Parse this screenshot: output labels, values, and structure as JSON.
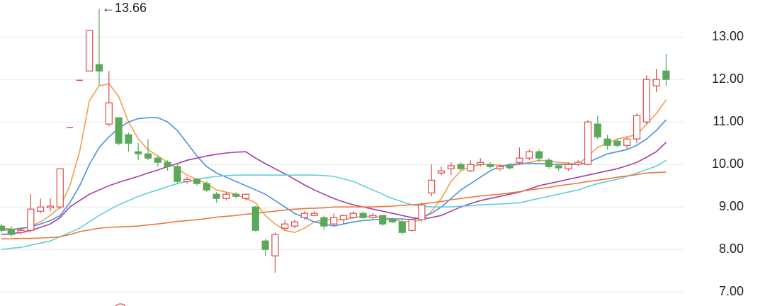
{
  "chart_data": {
    "type": "candlestick",
    "annotation": "←13.66",
    "up_color": "#e04848",
    "down_color": "#5aa95a",
    "open": [
      8.55,
      8.48,
      8.4,
      8.45,
      8.9,
      8.98,
      9.0,
      10.87,
      11.98,
      12.2,
      12.35,
      10.95,
      11.1,
      10.7,
      10.3,
      10.25,
      10.15,
      10.05,
      9.95,
      9.6,
      9.65,
      9.55,
      9.3,
      9.2,
      9.3,
      9.2,
      9.0,
      8.2,
      7.85,
      8.5,
      8.55,
      8.75,
      8.8,
      8.75,
      8.6,
      8.7,
      8.75,
      8.85,
      8.75,
      8.8,
      8.7,
      8.65,
      8.45,
      8.7,
      9.33,
      9.8,
      9.9,
      10.0,
      9.85,
      10.0,
      10.0,
      9.9,
      9.97,
      10.05,
      10.15,
      10.3,
      10.1,
      9.97,
      9.9,
      10.0,
      10.0,
      10.95,
      10.6,
      10.55,
      10.45,
      10.6,
      11.0,
      11.85,
      12.2
    ],
    "high": [
      8.6,
      8.55,
      8.5,
      9.3,
      9.2,
      9.2,
      9.9,
      10.87,
      11.98,
      13.15,
      13.66,
      12.2,
      11.1,
      10.75,
      10.5,
      10.6,
      10.2,
      10.1,
      10.0,
      9.7,
      9.68,
      9.6,
      9.35,
      9.35,
      9.35,
      9.3,
      9.02,
      8.25,
      8.4,
      8.7,
      8.7,
      8.9,
      8.9,
      8.8,
      8.85,
      8.82,
      8.9,
      8.9,
      8.85,
      8.82,
      8.75,
      8.7,
      8.75,
      9.1,
      10.0,
      9.95,
      10.05,
      10.05,
      10.1,
      10.15,
      10.05,
      10.0,
      10.02,
      10.4,
      10.35,
      10.35,
      10.15,
      10.02,
      10.05,
      10.1,
      11.05,
      11.15,
      10.7,
      10.6,
      10.65,
      11.2,
      12.1,
      12.25,
      12.6
    ],
    "low": [
      8.4,
      8.3,
      8.35,
      8.4,
      8.85,
      8.9,
      8.95,
      10.87,
      11.98,
      12.2,
      11.85,
      10.9,
      10.45,
      10.3,
      10.1,
      10.1,
      9.95,
      9.85,
      9.55,
      9.55,
      9.5,
      9.35,
      9.1,
      9.15,
      9.2,
      9.15,
      8.42,
      7.85,
      7.45,
      8.45,
      8.5,
      8.7,
      8.78,
      8.45,
      8.55,
      8.6,
      8.72,
      8.72,
      8.72,
      8.55,
      8.62,
      8.35,
      8.42,
      8.65,
      9.25,
      9.75,
      9.75,
      9.85,
      9.82,
      9.95,
      9.9,
      9.85,
      9.88,
      10.0,
      10.1,
      10.05,
      9.9,
      9.85,
      9.85,
      9.97,
      9.98,
      10.6,
      10.35,
      10.4,
      10.35,
      10.5,
      10.95,
      11.7,
      11.85
    ],
    "close": [
      8.45,
      8.35,
      8.45,
      8.95,
      9.0,
      9.02,
      9.9,
      10.87,
      11.98,
      13.15,
      12.2,
      11.45,
      10.5,
      10.5,
      10.25,
      10.15,
      10.05,
      9.95,
      9.6,
      9.65,
      9.55,
      9.4,
      9.2,
      9.3,
      9.25,
      9.3,
      8.45,
      8.0,
      8.35,
      8.6,
      8.65,
      8.85,
      8.85,
      8.55,
      8.75,
      8.8,
      8.85,
      8.75,
      8.8,
      8.6,
      8.65,
      8.4,
      8.7,
      9.05,
      9.63,
      9.85,
      9.97,
      9.9,
      10.0,
      10.05,
      9.95,
      9.95,
      9.92,
      10.15,
      10.3,
      10.15,
      9.95,
      9.92,
      10.0,
      10.05,
      11.0,
      10.65,
      10.45,
      10.45,
      10.6,
      11.15,
      12.0,
      12.0,
      12.0
    ],
    "series": [
      {
        "color": "#f0a04b",
        "values": [
          8.5,
          8.48,
          8.47,
          8.55,
          8.65,
          8.8,
          9.0,
          9.5,
          10.3,
          11.5,
          11.85,
          11.9,
          11.6,
          11.0,
          10.6,
          10.35,
          10.2,
          10.05,
          9.9,
          9.75,
          9.65,
          9.55,
          9.4,
          9.35,
          9.3,
          9.2,
          9.1,
          8.8,
          8.6,
          8.45,
          8.4,
          8.5,
          8.65,
          8.7,
          8.7,
          8.7,
          8.75,
          8.78,
          8.78,
          8.75,
          8.72,
          8.65,
          8.65,
          8.7,
          8.9,
          9.2,
          9.6,
          9.85,
          9.95,
          10.0,
          10.0,
          9.98,
          9.97,
          10.0,
          10.05,
          10.1,
          10.08,
          10.05,
          10.03,
          10.0,
          10.2,
          10.4,
          10.5,
          10.6,
          10.65,
          10.7,
          10.95,
          11.2,
          11.52
        ]
      },
      {
        "color": "#4a90e2",
        "values": [
          8.45,
          8.47,
          8.5,
          8.53,
          8.6,
          8.68,
          8.8,
          9.1,
          9.5,
          10.0,
          10.4,
          10.65,
          10.85,
          11.0,
          11.08,
          11.1,
          11.1,
          11.0,
          10.8,
          10.5,
          10.2,
          9.95,
          9.8,
          9.7,
          9.6,
          9.5,
          9.4,
          9.3,
          9.15,
          9.0,
          8.85,
          8.75,
          8.65,
          8.6,
          8.55,
          8.6,
          8.65,
          8.68,
          8.7,
          8.7,
          8.72,
          8.72,
          8.7,
          8.75,
          8.85,
          9.0,
          9.2,
          9.4,
          9.55,
          9.7,
          9.85,
          9.95,
          10.0,
          10.02,
          10.03,
          10.02,
          10.01,
          10.0,
          10.0,
          10.0,
          10.05,
          10.15,
          10.25,
          10.3,
          10.35,
          10.45,
          10.6,
          10.8,
          11.05
        ]
      },
      {
        "color": "#a63ea6",
        "values": [
          8.35,
          8.37,
          8.4,
          8.45,
          8.52,
          8.6,
          8.75,
          9.0,
          9.15,
          9.3,
          9.4,
          9.5,
          9.58,
          9.65,
          9.72,
          9.8,
          9.87,
          9.95,
          10.02,
          10.1,
          10.15,
          10.2,
          10.24,
          10.27,
          10.29,
          10.3,
          10.15,
          10.02,
          9.9,
          9.78,
          9.65,
          9.52,
          9.4,
          9.3,
          9.2,
          9.12,
          9.05,
          9.0,
          8.95,
          8.9,
          8.85,
          8.8,
          8.75,
          8.72,
          8.75,
          8.8,
          8.9,
          9.0,
          9.08,
          9.15,
          9.2,
          9.25,
          9.3,
          9.35,
          9.42,
          9.5,
          9.55,
          9.6,
          9.65,
          9.7,
          9.75,
          9.8,
          9.85,
          9.9,
          9.97,
          10.05,
          10.17,
          10.3,
          10.52
        ]
      },
      {
        "color": "#5fcfda",
        "values": [
          8.0,
          8.03,
          8.05,
          8.1,
          8.15,
          8.2,
          8.3,
          8.4,
          8.5,
          8.65,
          8.8,
          8.93,
          9.05,
          9.15,
          9.25,
          9.33,
          9.4,
          9.48,
          9.55,
          9.6,
          9.65,
          9.69,
          9.72,
          9.74,
          9.75,
          9.75,
          9.75,
          9.75,
          9.75,
          9.75,
          9.75,
          9.75,
          9.75,
          9.74,
          9.72,
          9.66,
          9.6,
          9.5,
          9.4,
          9.3,
          9.2,
          9.12,
          9.05,
          9.02,
          9.0,
          9.0,
          9.0,
          9.02,
          9.03,
          9.05,
          9.06,
          9.07,
          9.08,
          9.1,
          9.15,
          9.2,
          9.25,
          9.3,
          9.35,
          9.4,
          9.48,
          9.55,
          9.6,
          9.65,
          9.72,
          9.8,
          9.88,
          9.96,
          10.1
        ]
      },
      {
        "color": "#ea7a3c",
        "values": [
          8.25,
          8.25,
          8.26,
          8.26,
          8.27,
          8.28,
          8.3,
          8.35,
          8.42,
          8.46,
          8.5,
          8.52,
          8.53,
          8.54,
          8.55,
          8.58,
          8.6,
          8.63,
          8.66,
          8.68,
          8.7,
          8.73,
          8.76,
          8.78,
          8.8,
          8.83,
          8.85,
          8.88,
          8.9,
          8.93,
          8.95,
          8.96,
          8.97,
          8.98,
          9.0,
          9.0,
          9.0,
          9.0,
          9.0,
          9.01,
          9.02,
          9.04,
          9.05,
          9.07,
          9.1,
          9.13,
          9.17,
          9.2,
          9.23,
          9.26,
          9.28,
          9.3,
          9.33,
          9.36,
          9.4,
          9.43,
          9.46,
          9.5,
          9.53,
          9.56,
          9.6,
          9.63,
          9.66,
          9.7,
          9.73,
          9.76,
          9.8,
          9.81,
          9.82
        ]
      }
    ],
    "ylim": [
      6.67,
      13.87
    ],
    "yticks": [
      {
        "value": 7,
        "label": "7.00"
      },
      {
        "value": 8,
        "label": "8.00"
      },
      {
        "value": 9,
        "label": "9.00"
      },
      {
        "value": 10,
        "label": "10.00"
      },
      {
        "value": 11,
        "label": "11.00"
      },
      {
        "value": 12,
        "label": "12.00"
      },
      {
        "value": 13,
        "label": "13.00"
      }
    ],
    "grid": true
  }
}
